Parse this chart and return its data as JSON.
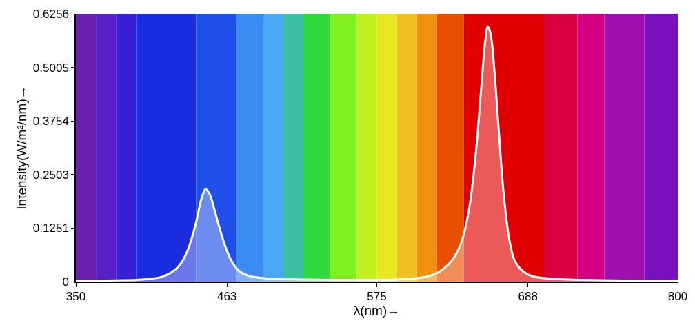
{
  "chart_data": {
    "type": "area",
    "xlabel": "λ(nm)→",
    "ylabel": "Intensity(W/m²/nm)→",
    "xlim": [
      350,
      800
    ],
    "xticks": [
      350,
      463,
      575,
      688,
      800
    ],
    "ylim": [
      0,
      0.6256
    ],
    "yticks": [
      0,
      0.1251,
      0.2503,
      0.3754,
      0.5005,
      0.6256
    ],
    "grid": false,
    "legend": false,
    "series": [
      {
        "color": "#ffffff",
        "x": [
          350,
          380,
          400,
          415,
          425,
          430,
          435,
          440,
          444,
          447,
          450,
          453,
          457,
          462,
          467,
          472,
          480,
          495,
          520,
          560,
          590,
          610,
          620,
          630,
          638,
          644,
          649,
          653,
          656,
          658,
          660,
          663,
          666,
          670,
          674,
          678,
          684,
          692,
          710,
          750,
          800
        ],
        "values": [
          0.002,
          0.003,
          0.005,
          0.012,
          0.03,
          0.05,
          0.085,
          0.14,
          0.195,
          0.216,
          0.205,
          0.175,
          0.13,
          0.08,
          0.045,
          0.025,
          0.013,
          0.007,
          0.005,
          0.004,
          0.005,
          0.01,
          0.02,
          0.045,
          0.09,
          0.17,
          0.3,
          0.45,
          0.56,
          0.596,
          0.58,
          0.49,
          0.36,
          0.2,
          0.1,
          0.05,
          0.025,
          0.012,
          0.006,
          0.003,
          0.002
        ]
      }
    ],
    "bands": [
      {
        "axis": "x",
        "from": 350,
        "to": 365,
        "color": "#6a1fb0"
      },
      {
        "axis": "x",
        "from": 365,
        "to": 380,
        "color": "#5a20c8"
      },
      {
        "axis": "x",
        "from": 380,
        "to": 395,
        "color": "#3a1fd8"
      },
      {
        "axis": "x",
        "from": 395,
        "to": 440,
        "color": "#1a2ee0"
      },
      {
        "axis": "x",
        "from": 440,
        "to": 470,
        "color": "#1e4fe8"
      },
      {
        "axis": "x",
        "from": 470,
        "to": 490,
        "color": "#3a8cf0"
      },
      {
        "axis": "x",
        "from": 490,
        "to": 505,
        "color": "#4aa8f5"
      },
      {
        "axis": "x",
        "from": 505,
        "to": 520,
        "color": "#3ac0a0"
      },
      {
        "axis": "x",
        "from": 520,
        "to": 540,
        "color": "#30d840"
      },
      {
        "axis": "x",
        "from": 540,
        "to": 560,
        "color": "#80f020"
      },
      {
        "axis": "x",
        "from": 560,
        "to": 575,
        "color": "#c0f020"
      },
      {
        "axis": "x",
        "from": 575,
        "to": 590,
        "color": "#e8e820"
      },
      {
        "axis": "x",
        "from": 590,
        "to": 605,
        "color": "#f0c020"
      },
      {
        "axis": "x",
        "from": 605,
        "to": 620,
        "color": "#f09010"
      },
      {
        "axis": "x",
        "from": 620,
        "to": 640,
        "color": "#e85000"
      },
      {
        "axis": "x",
        "from": 640,
        "to": 700,
        "color": "#e00000"
      },
      {
        "axis": "x",
        "from": 700,
        "to": 725,
        "color": "#d80040"
      },
      {
        "axis": "x",
        "from": 725,
        "to": 745,
        "color": "#d00080"
      },
      {
        "axis": "x",
        "from": 745,
        "to": 775,
        "color": "#a010b0"
      },
      {
        "axis": "x",
        "from": 775,
        "to": 800,
        "color": "#7a10c0"
      }
    ]
  }
}
